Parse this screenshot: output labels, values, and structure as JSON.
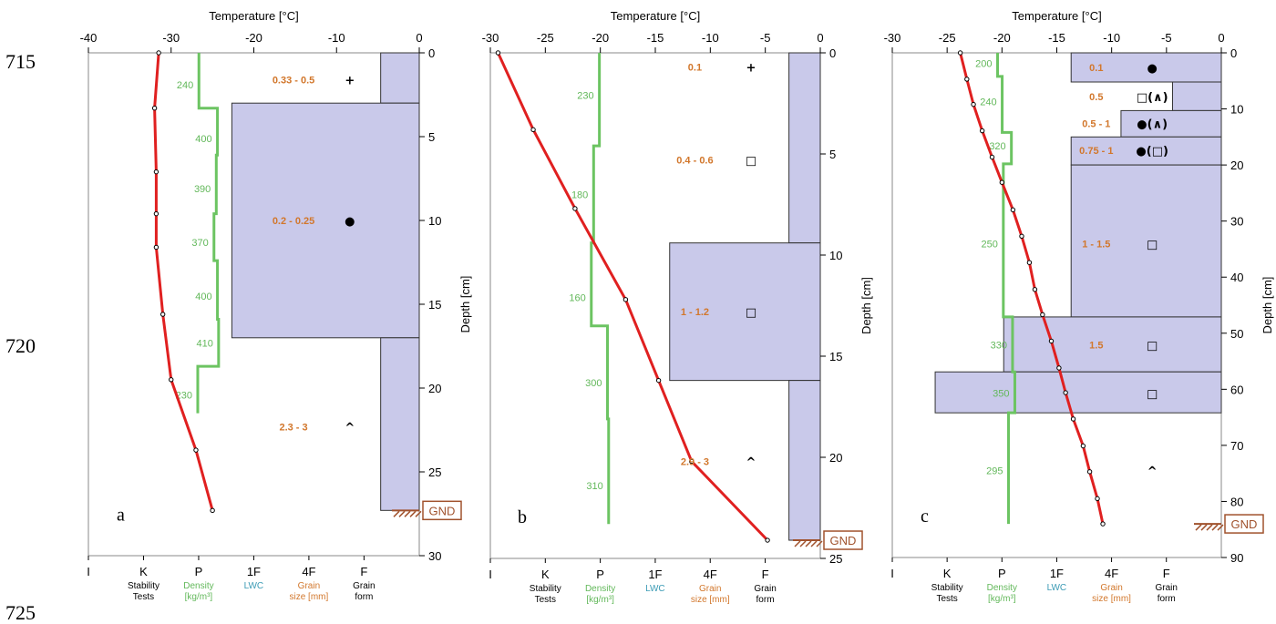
{
  "figure": {
    "line_numbers": [
      "715",
      "720",
      "725"
    ]
  },
  "chart_data": [
    {
      "type": "line",
      "panel": "a",
      "title": "",
      "xlabel": "Temperature [°C]",
      "ylabel": "Depth [cm]",
      "xlim": [
        -40,
        0
      ],
      "ylim": [
        0,
        30
      ],
      "x_ticks": [
        "-40",
        "-30",
        "-20",
        "-10",
        "0"
      ],
      "y_ticks": [
        "0",
        "5",
        "10",
        "15",
        "20",
        "25",
        "30"
      ],
      "hardness_ticks": [
        "I",
        "K",
        "P",
        "1F",
        "4F",
        "F"
      ],
      "bottom_labels": [
        {
          "text": "Stability\nTests",
          "color": "#000000",
          "at": "K"
        },
        {
          "text": "Density\n[kg/m³]",
          "color": "#62b85a",
          "at": "P"
        },
        {
          "text": "LWC",
          "color": "#3b9bb5",
          "at": "1F"
        },
        {
          "text": "Grain\nsize [mm]",
          "color": "#d2772c",
          "at": "4F"
        },
        {
          "text": "Grain\nform",
          "color": "#000000",
          "at": "F"
        }
      ],
      "ground_depth": 27.3,
      "ground_label": "GND",
      "layers": [
        {
          "top": 0,
          "bottom": 3,
          "hardness": 0.7
        },
        {
          "top": 3,
          "bottom": 17,
          "hardness": 3.4
        },
        {
          "top": 17,
          "bottom": 27.3,
          "hardness": 0.7
        }
      ],
      "temperature": {
        "depth": [
          0,
          3.3,
          7.1,
          9.6,
          11.6,
          15.6,
          19.5,
          23.7,
          27.3
        ],
        "temp": [
          -31.5,
          -32,
          -31.8,
          -31.8,
          -31.8,
          -31,
          -30,
          -27,
          -25
        ]
      },
      "density": {
        "steps": [
          {
            "top": 0,
            "bottom": 3.3,
            "value": 240
          },
          {
            "top": 3.3,
            "bottom": 6.1,
            "value": 400
          },
          {
            "top": 6.1,
            "bottom": 9.6,
            "value": 390
          },
          {
            "top": 9.6,
            "bottom": 12.4,
            "value": 370
          },
          {
            "top": 12.4,
            "bottom": 15.9,
            "value": 400
          },
          {
            "top": 15.9,
            "bottom": 18.7,
            "value": 410
          },
          {
            "top": 18.7,
            "bottom": 21.5,
            "value": 230
          }
        ],
        "labels": [
          {
            "text": "240",
            "depth": 1.9
          },
          {
            "text": "400",
            "depth": 5.1
          },
          {
            "text": "390",
            "depth": 8.1
          },
          {
            "text": "370",
            "depth": 11.3
          },
          {
            "text": "400",
            "depth": 14.5
          },
          {
            "text": "410",
            "depth": 17.3
          },
          {
            "text": "230",
            "depth": 20.4
          }
        ]
      },
      "grain_size": [
        {
          "text": "0.33 - 0.5",
          "depth": 1.6
        },
        {
          "text": "0.2 - 0.25",
          "depth": 10
        },
        {
          "text": "2.3 - 3",
          "depth": 22.3
        }
      ],
      "grain_form": [
        {
          "symbol": "+",
          "depth": 1.6
        },
        {
          "symbol": "●",
          "depth": 10
        },
        {
          "symbol": "^",
          "depth": 22.3
        }
      ]
    },
    {
      "type": "line",
      "panel": "b",
      "title": "",
      "xlabel": "Temperature [°C]",
      "ylabel": "Depth [cm]",
      "xlim": [
        -30,
        0
      ],
      "ylim": [
        0,
        25
      ],
      "x_ticks": [
        "-30",
        "-25",
        "-20",
        "-15",
        "-10",
        "-5",
        "0"
      ],
      "y_ticks": [
        "0",
        "5",
        "10",
        "15",
        "20",
        "25"
      ],
      "hardness_ticks": [
        "I",
        "K",
        "P",
        "1F",
        "4F",
        "F"
      ],
      "bottom_labels": [
        {
          "text": "Stability\nTests",
          "color": "#000000",
          "at": "K"
        },
        {
          "text": "Density\n[kg/m³]",
          "color": "#62b85a",
          "at": "P"
        },
        {
          "text": "LWC",
          "color": "#3b9bb5",
          "at": "1F"
        },
        {
          "text": "Grain\nsize [mm]",
          "color": "#d2772c",
          "at": "4F"
        },
        {
          "text": "Grain\nform",
          "color": "#000000",
          "at": "F"
        }
      ],
      "ground_depth": 24.1,
      "ground_label": "GND",
      "layers": [
        {
          "top": 0,
          "bottom": 9.4,
          "hardness": 0.57
        },
        {
          "top": 9.4,
          "bottom": 16.2,
          "hardness": 2.74
        },
        {
          "top": 16.2,
          "bottom": 24.1,
          "hardness": 0.57
        }
      ],
      "temperature": {
        "depth": [
          0,
          3.8,
          7.7,
          12.2,
          16.2,
          20.2,
          24.1
        ],
        "temp": [
          -29.3,
          -26.1,
          -22.3,
          -17.7,
          -14.7,
          -11.7,
          -4.8
        ]
      },
      "density": {
        "steps": [
          {
            "top": 0,
            "bottom": 4.6,
            "value": 230
          },
          {
            "top": 4.6,
            "bottom": 9.4,
            "value": 180
          },
          {
            "top": 9.4,
            "bottom": 13.5,
            "value": 160
          },
          {
            "top": 13.5,
            "bottom": 18.1,
            "value": 300
          },
          {
            "top": 18.1,
            "bottom": 23.3,
            "value": 310
          }
        ],
        "labels": [
          {
            "text": "230",
            "depth": 2.1
          },
          {
            "text": "180",
            "depth": 7
          },
          {
            "text": "160",
            "depth": 12.1
          },
          {
            "text": "300",
            "depth": 16.3
          },
          {
            "text": "310",
            "depth": 21.4
          }
        ]
      },
      "grain_size": [
        {
          "text": "0.1",
          "depth": 0.7
        },
        {
          "text": "0.4 - 0.6",
          "depth": 5.3
        },
        {
          "text": "1 - 1.2",
          "depth": 12.8
        },
        {
          "text": "2.9 - 3",
          "depth": 20.2
        }
      ],
      "grain_form": [
        {
          "symbol": "+",
          "depth": 0.7
        },
        {
          "symbol": "□",
          "depth": 5.3
        },
        {
          "symbol": "□",
          "depth": 12.8
        },
        {
          "symbol": "^",
          "depth": 20.2
        }
      ]
    },
    {
      "type": "line",
      "panel": "c",
      "title": "",
      "xlabel": "Temperature [°C]",
      "ylabel": "Depth [cm]",
      "xlim": [
        -30,
        0
      ],
      "ylim": [
        0,
        90
      ],
      "x_ticks": [
        "-30",
        "-25",
        "-20",
        "-15",
        "-10",
        "-5",
        "0"
      ],
      "y_ticks": [
        "0",
        "10",
        "20",
        "30",
        "40",
        "50",
        "60",
        "70",
        "80",
        "90"
      ],
      "hardness_ticks": [
        "I",
        "K",
        "P",
        "1F",
        "4F",
        "F"
      ],
      "bottom_labels": [
        {
          "text": "Stability\nTests",
          "color": "#000000",
          "at": "K"
        },
        {
          "text": "Density\n[kg/m³]",
          "color": "#62b85a",
          "at": "P"
        },
        {
          "text": "LWC",
          "color": "#3b9bb5",
          "at": "1F"
        },
        {
          "text": "Grain\nsize [mm]",
          "color": "#d2772c",
          "at": "4F"
        },
        {
          "text": "Grain\nform",
          "color": "#000000",
          "at": "F"
        }
      ],
      "ground_depth": 84,
      "ground_label": "GND",
      "layers": [
        {
          "top": 0,
          "bottom": 5.2,
          "hardness": 2.74
        },
        {
          "top": 5.2,
          "bottom": 10.3,
          "hardness": 0.89
        },
        {
          "top": 10.3,
          "bottom": 15,
          "hardness": 1.83
        },
        {
          "top": 15,
          "bottom": 20,
          "hardness": 2.74
        },
        {
          "top": 20,
          "bottom": 47.1,
          "hardness": 2.74
        },
        {
          "top": 47.1,
          "bottom": 56.9,
          "hardness": 3.97
        },
        {
          "top": 56.9,
          "bottom": 64.2,
          "hardness": 5.22
        }
      ],
      "temperature": {
        "depth": [
          0,
          4.7,
          9.2,
          13.9,
          18.6,
          23.1,
          28,
          32.7,
          37.4,
          42.2,
          46.7,
          51.4,
          56.2,
          60.6,
          65.3,
          70.1,
          74.7,
          79.5,
          84
        ],
        "temp": [
          -23.8,
          -23.2,
          -22.6,
          -21.8,
          -20.9,
          -20,
          -19,
          -18.2,
          -17.5,
          -17,
          -16.3,
          -15.5,
          -14.8,
          -14.2,
          -13.5,
          -12.6,
          -12,
          -11.3,
          -10.8
        ]
      },
      "density": {
        "steps": [
          {
            "top": 0,
            "bottom": 4.2,
            "value": 200
          },
          {
            "top": 4.2,
            "bottom": 14.2,
            "value": 240
          },
          {
            "top": 14.2,
            "bottom": 19.8,
            "value": 320
          },
          {
            "top": 19.8,
            "bottom": 47.1,
            "value": 250
          },
          {
            "top": 47.1,
            "bottom": 56.9,
            "value": 330
          },
          {
            "top": 56.9,
            "bottom": 64.2,
            "value": 350
          },
          {
            "top": 64.2,
            "bottom": 84,
            "value": 295
          }
        ],
        "labels": [
          {
            "text": "200",
            "depth": 1.9
          },
          {
            "text": "240",
            "depth": 8.7
          },
          {
            "text": "320",
            "depth": 16.6
          },
          {
            "text": "250",
            "depth": 34
          },
          {
            "text": "330",
            "depth": 52.1
          },
          {
            "text": "350",
            "depth": 60.7
          },
          {
            "text": "295",
            "depth": 74.5
          }
        ]
      },
      "grain_size": [
        {
          "text": "0.1",
          "depth": 2.6
        },
        {
          "text": "0.5",
          "depth": 7.8
        },
        {
          "text": "0.5 - 1",
          "depth": 12.6
        },
        {
          "text": "0.75 - 1",
          "depth": 17.4
        },
        {
          "text": "1 - 1.5",
          "depth": 34
        },
        {
          "text": "1.5",
          "depth": 52.1
        },
        {
          "text": "",
          "depth": 60.7
        }
      ],
      "grain_form": [
        {
          "symbol": "●",
          "depth": 2.6
        },
        {
          "symbol": "□(∧)",
          "depth": 7.8
        },
        {
          "symbol": "●(∧)",
          "depth": 12.6
        },
        {
          "symbol": "●(□)",
          "depth": 17.4
        },
        {
          "symbol": "□",
          "depth": 34
        },
        {
          "symbol": "□",
          "depth": 52.1
        },
        {
          "symbol": "□",
          "depth": 60.7
        },
        {
          "symbol": "^",
          "depth": 74.5
        }
      ]
    }
  ]
}
